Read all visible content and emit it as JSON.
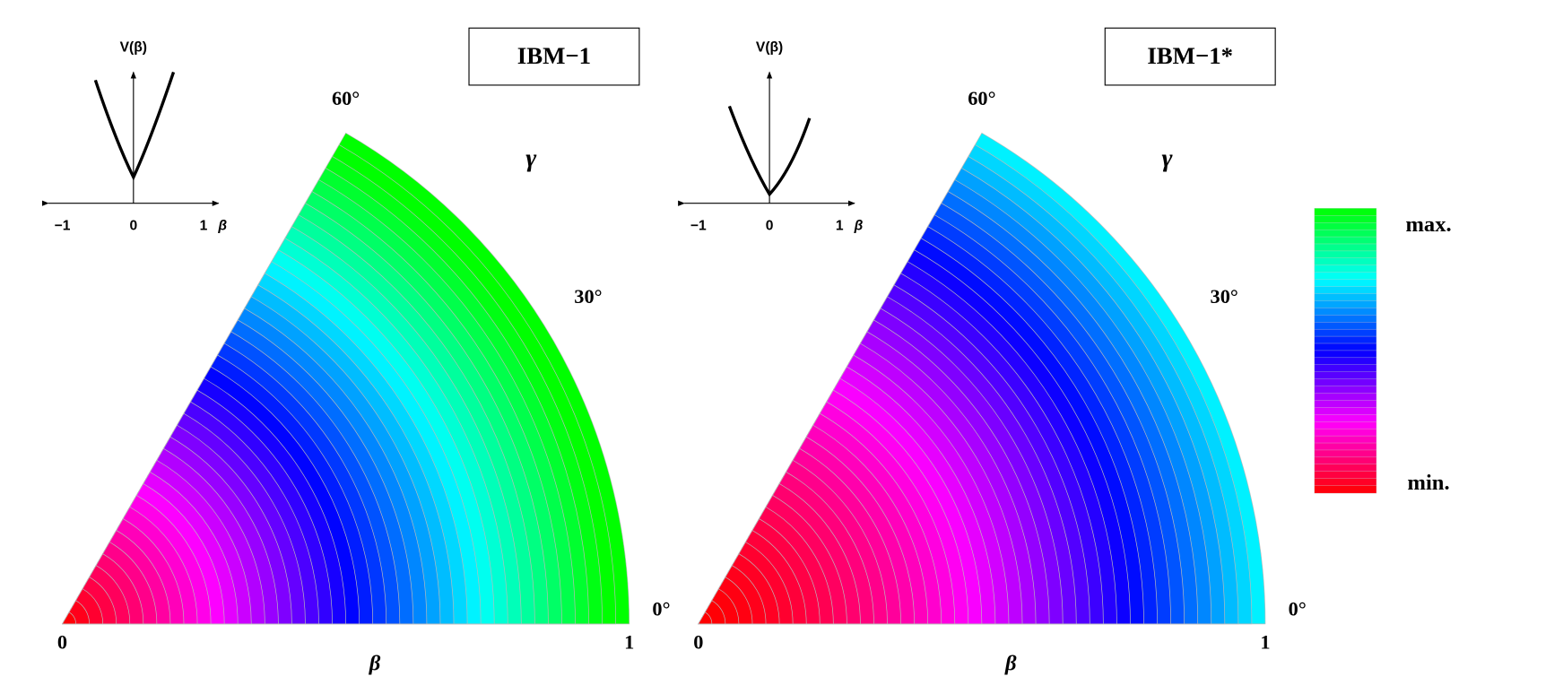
{
  "panels": [
    {
      "label": "IBM−1",
      "label_color": "#2a1ff0",
      "inset": {
        "y_label": "V(β)",
        "x_ticks": [
          "−1",
          "0",
          "1"
        ],
        "x_label": "β"
      },
      "angle_labels": [
        "60°",
        "30°",
        "0°"
      ],
      "gamma_label": "γ",
      "radial_ticks": [
        "0",
        "1"
      ],
      "radial_label": "β"
    },
    {
      "label": "IBM−1*",
      "label_color": "#ee1111",
      "inset": {
        "y_label": "V(β)",
        "x_ticks": [
          "−1",
          "0",
          "1"
        ],
        "x_label": "β"
      },
      "angle_labels": [
        "60°",
        "30°",
        "0°"
      ],
      "gamma_label": "γ",
      "radial_ticks": [
        "0",
        "1"
      ],
      "radial_label": "β"
    }
  ],
  "colorbar": {
    "max_label": "max.",
    "min_label": "min."
  }
}
